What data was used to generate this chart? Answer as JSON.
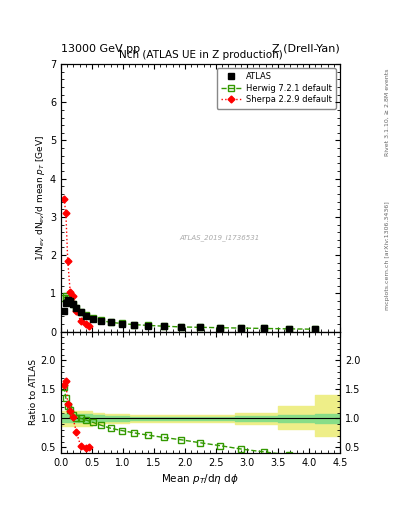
{
  "title_top_left": "13000 GeV pp",
  "title_top_right": "Z (Drell-Yan)",
  "plot_title": "Nch (ATLAS UE in Z production)",
  "xlabel": "Mean $p_T$/d$\\eta$ d$\\phi$",
  "ylabel_main": "1/N$_{ev}$ dN$_{ev}$/d mean $p_T$ [GeV]",
  "ylabel_ratio": "Ratio to ATLAS",
  "right_label_top": "Rivet 3.1.10, ≥ 2.8M events",
  "right_label_bot": "mcplots.cern.ch [arXiv:1306.3436]",
  "watermark": "ATLAS_2019_I1736531",
  "xlim": [
    0,
    4.5
  ],
  "ylim_main": [
    0,
    7
  ],
  "ylim_ratio": [
    0.4,
    2.5
  ],
  "atlas_x": [
    0.05,
    0.08,
    0.11,
    0.15,
    0.19,
    0.25,
    0.32,
    0.41,
    0.52,
    0.65,
    0.8,
    0.98,
    1.18,
    1.41,
    1.66,
    1.94,
    2.24,
    2.56,
    2.91,
    3.28,
    3.68,
    4.1
  ],
  "atlas_y": [
    0.54,
    0.75,
    0.82,
    0.79,
    0.73,
    0.62,
    0.5,
    0.41,
    0.34,
    0.28,
    0.24,
    0.2,
    0.18,
    0.15,
    0.14,
    0.12,
    0.11,
    0.1,
    0.09,
    0.08,
    0.07,
    0.06
  ],
  "herwig_x": [
    0.05,
    0.08,
    0.11,
    0.15,
    0.19,
    0.25,
    0.32,
    0.41,
    0.52,
    0.65,
    0.8,
    0.98,
    1.18,
    1.41,
    1.66,
    1.94,
    2.24,
    2.56,
    2.91,
    3.28,
    3.68,
    4.1
  ],
  "herwig_y": [
    0.88,
    0.92,
    0.87,
    0.82,
    0.73,
    0.62,
    0.51,
    0.42,
    0.35,
    0.29,
    0.24,
    0.21,
    0.18,
    0.16,
    0.14,
    0.12,
    0.11,
    0.1,
    0.09,
    0.08,
    0.07,
    0.06
  ],
  "sherpa_x": [
    0.05,
    0.08,
    0.11,
    0.15,
    0.19,
    0.25,
    0.32,
    0.41,
    0.46
  ],
  "sherpa_y": [
    3.48,
    3.1,
    1.85,
    1.04,
    0.93,
    0.53,
    0.27,
    0.19,
    0.15
  ],
  "herwig_ratio_x": [
    0.05,
    0.08,
    0.11,
    0.15,
    0.19,
    0.25,
    0.32,
    0.41,
    0.52,
    0.65,
    0.8,
    0.98,
    1.18,
    1.41,
    1.66,
    1.94,
    2.24,
    2.56,
    2.91,
    3.28,
    3.68,
    4.1
  ],
  "herwig_ratio_y": [
    1.55,
    1.35,
    1.22,
    1.15,
    1.05,
    1.0,
    1.0,
    0.97,
    0.93,
    0.88,
    0.83,
    0.79,
    0.75,
    0.71,
    0.67,
    0.63,
    0.58,
    0.53,
    0.47,
    0.42,
    0.37,
    0.32
  ],
  "sherpa_ratio_x": [
    0.05,
    0.08,
    0.11,
    0.15,
    0.19,
    0.25,
    0.32,
    0.41,
    0.46
  ],
  "sherpa_ratio_y": [
    1.58,
    1.65,
    1.25,
    1.12,
    1.03,
    0.76,
    0.52,
    0.48,
    0.5
  ],
  "band_outer_x": [
    0.0,
    0.5,
    0.7,
    1.1,
    1.6,
    2.1,
    2.8,
    3.5,
    4.1,
    4.5
  ],
  "band_outer_ylow": [
    0.87,
    0.9,
    0.92,
    0.94,
    0.94,
    0.94,
    0.9,
    0.82,
    0.7,
    0.65
  ],
  "band_outer_yhigh": [
    1.13,
    1.1,
    1.08,
    1.06,
    1.06,
    1.06,
    1.1,
    1.22,
    1.4,
    1.5
  ],
  "band_inner_x": [
    0.0,
    0.5,
    0.7,
    1.1,
    1.6,
    2.1,
    2.8,
    3.5,
    4.1,
    4.5
  ],
  "band_inner_ylow": [
    0.93,
    0.95,
    0.96,
    0.97,
    0.97,
    0.97,
    0.96,
    0.94,
    0.92,
    0.9
  ],
  "band_inner_yhigh": [
    1.07,
    1.05,
    1.04,
    1.03,
    1.03,
    1.03,
    1.04,
    1.06,
    1.08,
    1.1
  ],
  "atlas_color": "#000000",
  "herwig_color": "#339900",
  "sherpa_color": "#ff0000",
  "band_inner_color": "#88dd88",
  "band_outer_color": "#eeee88",
  "bg_color": "#ffffff"
}
